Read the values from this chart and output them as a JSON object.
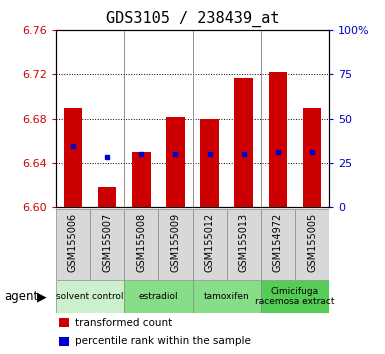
{
  "title": "GDS3105 / 238439_at",
  "samples": [
    "GSM155006",
    "GSM155007",
    "GSM155008",
    "GSM155009",
    "GSM155012",
    "GSM155013",
    "GSM154972",
    "GSM155005"
  ],
  "bar_values": [
    6.69,
    6.618,
    6.65,
    6.681,
    6.68,
    6.717,
    6.722,
    6.69
  ],
  "bar_base": 6.6,
  "blue_dot_values": [
    6.655,
    6.645,
    6.648,
    6.648,
    6.648,
    6.648,
    6.65,
    6.65
  ],
  "ymin": 6.6,
  "ymax": 6.76,
  "y_ticks": [
    6.6,
    6.64,
    6.68,
    6.72,
    6.76
  ],
  "right_ticks": [
    0,
    25,
    50,
    75,
    100
  ],
  "right_tick_labels": [
    "0",
    "25",
    "50",
    "75",
    "100%"
  ],
  "bar_color": "#cc0000",
  "blue_dot_color": "#0000cc",
  "agent_groups": [
    {
      "label": "solvent control",
      "start": 0,
      "end": 2,
      "color": "#ccf0cc"
    },
    {
      "label": "estradiol",
      "start": 2,
      "end": 4,
      "color": "#88dd88"
    },
    {
      "label": "tamoxifen",
      "start": 4,
      "end": 6,
      "color": "#88dd88"
    },
    {
      "label": "Cimicifuga\nracemosa extract",
      "start": 6,
      "end": 8,
      "color": "#55cc55"
    }
  ],
  "bar_width": 0.55,
  "title_fontsize": 11,
  "tick_color_left": "#cc0000",
  "tick_color_right": "#0000cc",
  "grid_color": "#000000",
  "sample_box_color": "#d8d8d8",
  "agent_label": "agent",
  "legend_items": [
    {
      "label": "transformed count",
      "color": "#cc0000"
    },
    {
      "label": "percentile rank within the sample",
      "color": "#0000cc"
    }
  ]
}
